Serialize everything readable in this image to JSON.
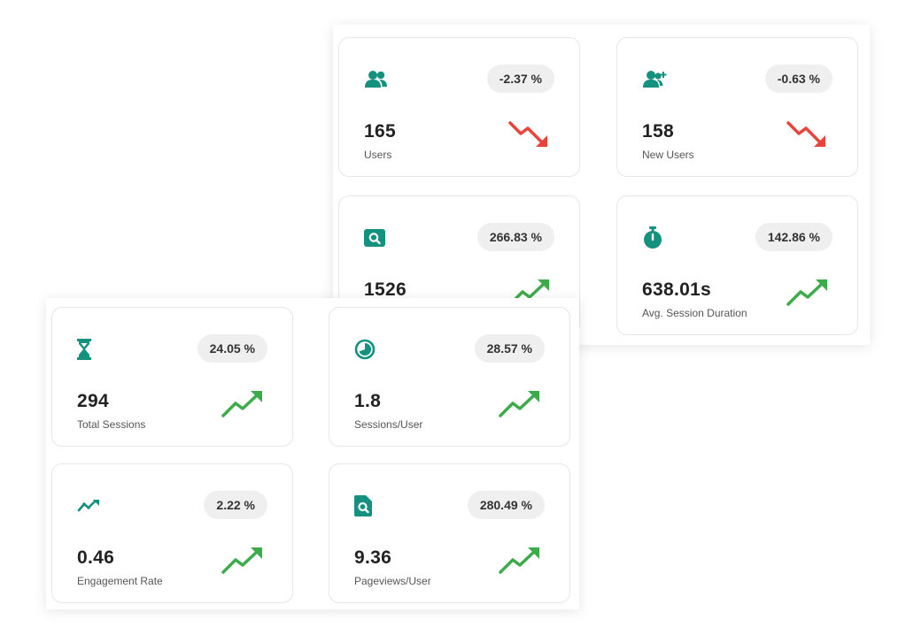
{
  "colors": {
    "accent": "#14917f",
    "down": "#e8443a",
    "up": "#3cab4a"
  },
  "back_panel": {
    "cards": [
      {
        "icon": "users-icon",
        "badge": "-2.37 %",
        "value": "165",
        "label": "Users",
        "trend": "down"
      },
      {
        "icon": "user-plus-icon",
        "badge": "-0.63 %",
        "value": "158",
        "label": "New Users",
        "trend": "down"
      },
      {
        "icon": "search-window-icon",
        "badge": "266.83 %",
        "value": "1526",
        "label": "",
        "trend": "up"
      },
      {
        "icon": "stopwatch-icon",
        "badge": "142.86 %",
        "value": "638.01s",
        "label": "Avg. Session Duration",
        "trend": "up"
      }
    ]
  },
  "front_panel": {
    "cards": [
      {
        "icon": "hourglass-icon",
        "badge": "24.05 %",
        "value": "294",
        "label": "Total Sessions",
        "trend": "up"
      },
      {
        "icon": "pie-icon",
        "badge": "28.57 %",
        "value": "1.8",
        "label": "Sessions/User",
        "trend": "up"
      },
      {
        "icon": "trend-line-icon",
        "badge": "2.22 %",
        "value": "0.46",
        "label": "Engagement Rate",
        "trend": "up"
      },
      {
        "icon": "file-search-icon",
        "badge": "280.49 %",
        "value": "9.36",
        "label": "Pageviews/User",
        "trend": "up"
      }
    ]
  }
}
